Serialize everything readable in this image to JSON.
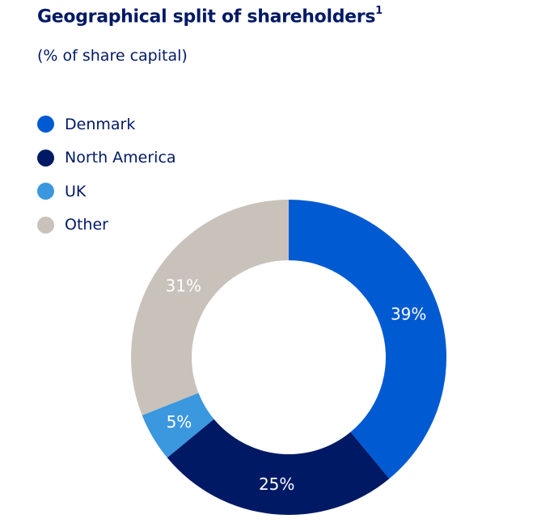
{
  "title": "Geographical split of shareholders",
  "title_footnote": "1",
  "subtitle": "(% of share capital)",
  "chart_data": {
    "type": "pie",
    "donut": true,
    "title": "Geographical split of shareholders",
    "subtitle": "(% of share capital)",
    "legend_position": "top-left",
    "categories": [
      "Denmark",
      "North America",
      "UK",
      "Other"
    ],
    "values": [
      39,
      25,
      5,
      31
    ],
    "labels": [
      "39%",
      "25%",
      "5%",
      "31%"
    ],
    "colors": [
      "#005AD2",
      "#001965",
      "#3B97DE",
      "#C9C2BA"
    ]
  }
}
